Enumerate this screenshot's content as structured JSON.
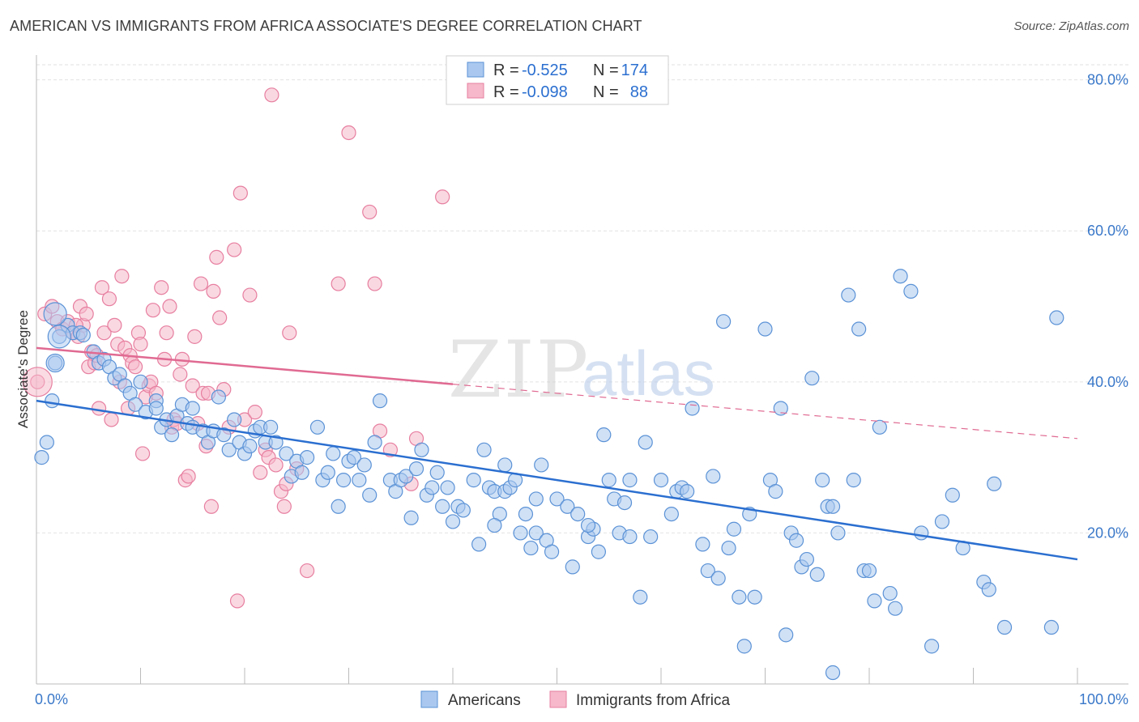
{
  "title": "AMERICAN VS IMMIGRANTS FROM AFRICA ASSOCIATE'S DEGREE CORRELATION CHART",
  "source": "Source: ZipAtlas.com",
  "watermark": {
    "zip": "ZIP",
    "atlas": "atlas"
  },
  "colors": {
    "blue_fill": "#aac8ef",
    "blue_stroke": "#5b92d6",
    "blue_line": "#2b6fd0",
    "pink_fill": "#f6b8ca",
    "pink_stroke": "#e77fa0",
    "pink_line": "#e06a92",
    "tick_text": "#3a78c9",
    "grid": "#e2e2e2"
  },
  "legend": {
    "r_label": "R =",
    "n_label": "N =",
    "rows": [
      {
        "series": "Americans",
        "r": "-0.525",
        "n": "174"
      },
      {
        "series": "Immigrants from Africa",
        "r": "-0.098",
        "n": "88"
      }
    ]
  },
  "chart_data": {
    "type": "scatter",
    "xlabel": "",
    "ylabel": "Associate's Degree",
    "xlim": [
      0,
      100
    ],
    "ylim": [
      0,
      82
    ],
    "x_tick_labels": [
      "0.0%",
      "100.0%"
    ],
    "y_ticks": [
      20,
      40,
      60,
      80
    ],
    "y_tick_labels": [
      "20.0%",
      "40.0%",
      "60.0%",
      "80.0%"
    ],
    "grid": true,
    "legend_position": "top-center",
    "bottom_legend": [
      "Americans",
      "Immigrants from Africa"
    ],
    "series": [
      {
        "name": "Americans",
        "color": "#5b92d6",
        "trend": {
          "x0": 0,
          "y0": 37.5,
          "x1": 100,
          "y1": 16.5,
          "solid_to": 100
        },
        "points": [
          [
            0.5,
            30
          ],
          [
            1,
            32
          ],
          [
            1.5,
            37.5
          ],
          [
            1.8,
            42.5
          ],
          [
            2.2,
            46
          ],
          [
            3,
            47.5
          ],
          [
            3.5,
            46.5
          ],
          [
            4.2,
            46.5
          ],
          [
            4.5,
            46.2
          ],
          [
            5.5,
            44
          ],
          [
            6,
            42.5
          ],
          [
            6.5,
            43
          ],
          [
            7,
            42
          ],
          [
            7.5,
            40.5
          ],
          [
            8,
            41
          ],
          [
            8.5,
            39.5
          ],
          [
            9,
            38.5
          ],
          [
            9.5,
            37
          ],
          [
            10,
            40
          ],
          [
            10.5,
            36
          ],
          [
            11.5,
            37.5
          ],
          [
            11.5,
            36.5
          ],
          [
            12,
            34
          ],
          [
            12.5,
            35
          ],
          [
            13,
            33
          ],
          [
            13.5,
            35.5
          ],
          [
            14,
            37
          ],
          [
            14.5,
            34.5
          ],
          [
            15,
            36.5
          ],
          [
            15,
            34
          ],
          [
            16,
            33.5
          ],
          [
            16.5,
            32
          ],
          [
            17,
            33.5
          ],
          [
            17.5,
            38
          ],
          [
            18,
            33
          ],
          [
            18.5,
            31
          ],
          [
            19,
            35
          ],
          [
            19.5,
            32
          ],
          [
            20,
            30.5
          ],
          [
            20.5,
            31.5
          ],
          [
            21,
            33.5
          ],
          [
            21.5,
            34
          ],
          [
            22,
            32
          ],
          [
            22.5,
            34
          ],
          [
            23,
            32
          ],
          [
            24,
            30.5
          ],
          [
            24.5,
            27.5
          ],
          [
            25,
            29.5
          ],
          [
            25.5,
            28
          ],
          [
            26,
            30
          ],
          [
            27,
            34
          ],
          [
            27.5,
            27
          ],
          [
            28,
            28
          ],
          [
            28.5,
            30.5
          ],
          [
            29,
            23.5
          ],
          [
            29.5,
            27
          ],
          [
            30,
            29.5
          ],
          [
            30.5,
            30
          ],
          [
            31,
            27
          ],
          [
            31.5,
            29
          ],
          [
            32,
            25
          ],
          [
            32.5,
            32
          ],
          [
            33,
            37.5
          ],
          [
            34,
            27
          ],
          [
            34.5,
            25.5
          ],
          [
            35,
            27
          ],
          [
            35.5,
            27.5
          ],
          [
            36,
            22
          ],
          [
            36.5,
            28.5
          ],
          [
            37,
            31
          ],
          [
            37.5,
            25
          ],
          [
            38,
            26
          ],
          [
            38.5,
            28
          ],
          [
            39,
            23.5
          ],
          [
            39.5,
            26
          ],
          [
            40,
            21.5
          ],
          [
            40.5,
            23.5
          ],
          [
            41,
            23
          ],
          [
            42,
            27
          ],
          [
            42.5,
            18.5
          ],
          [
            43,
            31
          ],
          [
            43.5,
            26
          ],
          [
            44,
            25.5
          ],
          [
            44.5,
            22.5
          ],
          [
            45,
            25.5
          ],
          [
            45.5,
            26
          ],
          [
            46,
            27
          ],
          [
            46.5,
            20
          ],
          [
            47,
            22.5
          ],
          [
            47.5,
            18
          ],
          [
            48,
            20
          ],
          [
            48.5,
            29
          ],
          [
            49,
            19
          ],
          [
            49.5,
            17.5
          ],
          [
            50,
            24.5
          ],
          [
            51,
            23.5
          ],
          [
            51.5,
            15.5
          ],
          [
            52,
            22.5
          ],
          [
            53,
            19.5
          ],
          [
            53.5,
            20.5
          ],
          [
            54,
            17.5
          ],
          [
            54.5,
            33
          ],
          [
            55,
            27
          ],
          [
            55.5,
            24.5
          ],
          [
            56,
            20
          ],
          [
            56.5,
            24
          ],
          [
            57,
            19.5
          ],
          [
            58,
            11.5
          ],
          [
            58.5,
            32
          ],
          [
            59,
            19.5
          ],
          [
            60,
            27
          ],
          [
            61,
            22.5
          ],
          [
            61.5,
            25.5
          ],
          [
            62,
            26
          ],
          [
            62.5,
            25.5
          ],
          [
            63,
            36.5
          ],
          [
            64,
            18.5
          ],
          [
            64.5,
            15
          ],
          [
            65,
            27.5
          ],
          [
            65.5,
            14
          ],
          [
            66,
            48
          ],
          [
            66.5,
            18
          ],
          [
            67,
            20.5
          ],
          [
            67.5,
            11.5
          ],
          [
            68,
            5
          ],
          [
            68.5,
            22.5
          ],
          [
            69,
            11.5
          ],
          [
            70,
            47
          ],
          [
            70.5,
            27
          ],
          [
            71,
            25.5
          ],
          [
            71.5,
            36.5
          ],
          [
            72,
            6.5
          ],
          [
            72.5,
            20
          ],
          [
            73,
            19
          ],
          [
            73.5,
            15.5
          ],
          [
            74,
            16.5
          ],
          [
            74.5,
            40.5
          ],
          [
            75,
            14.5
          ],
          [
            75.5,
            27
          ],
          [
            76,
            23.5
          ],
          [
            76.5,
            23.5
          ],
          [
            76.5,
            1.5
          ],
          [
            77,
            20
          ],
          [
            78,
            51.5
          ],
          [
            78.5,
            27
          ],
          [
            79,
            47
          ],
          [
            79.5,
            15
          ],
          [
            80,
            15
          ],
          [
            80.5,
            11
          ],
          [
            81,
            34
          ],
          [
            82,
            12
          ],
          [
            82.5,
            10
          ],
          [
            83,
            54
          ],
          [
            84,
            52
          ],
          [
            85,
            20
          ],
          [
            86,
            5
          ],
          [
            87,
            21.5
          ],
          [
            88,
            25
          ],
          [
            89,
            18
          ],
          [
            91,
            13.5
          ],
          [
            91.5,
            12.5
          ],
          [
            92,
            26.5
          ],
          [
            93,
            7.5
          ],
          [
            97.5,
            7.5
          ],
          [
            98,
            48.5
          ],
          [
            57,
            27
          ],
          [
            48,
            24.5
          ],
          [
            44,
            21
          ],
          [
            45,
            29
          ],
          [
            53,
            21
          ]
        ]
      },
      {
        "name": "Immigrants from Africa",
        "color": "#e77fa0",
        "trend": {
          "x0": 0,
          "y0": 44.5,
          "x1": 100,
          "y1": 32.5,
          "solid_to": 40
        },
        "points": [
          [
            0.1,
            40
          ],
          [
            0.8,
            49
          ],
          [
            1.5,
            50
          ],
          [
            2,
            48
          ],
          [
            2.5,
            47
          ],
          [
            3,
            48
          ],
          [
            3.5,
            46.5
          ],
          [
            4,
            46
          ],
          [
            4.2,
            50
          ],
          [
            4.5,
            47.5
          ],
          [
            5,
            42
          ],
          [
            5.3,
            44
          ],
          [
            5.6,
            42.5
          ],
          [
            5.8,
            43.5
          ],
          [
            6,
            36.5
          ],
          [
            6.3,
            52.5
          ],
          [
            6.5,
            46.5
          ],
          [
            7,
            51
          ],
          [
            7.2,
            35
          ],
          [
            7.5,
            47.5
          ],
          [
            7.8,
            45
          ],
          [
            8,
            40
          ],
          [
            8.2,
            54
          ],
          [
            8.5,
            44.5
          ],
          [
            8.8,
            36.5
          ],
          [
            9,
            43.5
          ],
          [
            9.2,
            42.5
          ],
          [
            9.5,
            42
          ],
          [
            9.8,
            46.5
          ],
          [
            10,
            45
          ],
          [
            10.2,
            30.5
          ],
          [
            10.5,
            38
          ],
          [
            10.8,
            39.5
          ],
          [
            11,
            40
          ],
          [
            11.2,
            49.5
          ],
          [
            11.5,
            38.5
          ],
          [
            12,
            52.5
          ],
          [
            12.3,
            43
          ],
          [
            12.5,
            46.5
          ],
          [
            12.8,
            50
          ],
          [
            13,
            34
          ],
          [
            13.2,
            35
          ],
          [
            13.5,
            34.5
          ],
          [
            13.8,
            41
          ],
          [
            14,
            43
          ],
          [
            14.3,
            27
          ],
          [
            14.6,
            27.5
          ],
          [
            15,
            39.5
          ],
          [
            15.2,
            46
          ],
          [
            15.5,
            34.5
          ],
          [
            15.8,
            53
          ],
          [
            16,
            38.5
          ],
          [
            16.3,
            31.5
          ],
          [
            16.5,
            38.5
          ],
          [
            16.8,
            23.5
          ],
          [
            17,
            52
          ],
          [
            17.3,
            56.5
          ],
          [
            17.6,
            48.5
          ],
          [
            18,
            39
          ],
          [
            18.5,
            34
          ],
          [
            19,
            57.5
          ],
          [
            19.3,
            11
          ],
          [
            19.6,
            65
          ],
          [
            20,
            35
          ],
          [
            20.5,
            51.5
          ],
          [
            21,
            36
          ],
          [
            21.5,
            28
          ],
          [
            22,
            31
          ],
          [
            22.3,
            30
          ],
          [
            22.6,
            78
          ],
          [
            23,
            29
          ],
          [
            23.5,
            25.5
          ],
          [
            23.8,
            23.5
          ],
          [
            24,
            26.5
          ],
          [
            24.3,
            46.5
          ],
          [
            25,
            28.5
          ],
          [
            26,
            15
          ],
          [
            29,
            53
          ],
          [
            30,
            73
          ],
          [
            32,
            62.5
          ],
          [
            32.5,
            53
          ],
          [
            33,
            33.5
          ],
          [
            34,
            31
          ],
          [
            36,
            26.5
          ],
          [
            36.5,
            32.5
          ],
          [
            39,
            64.5
          ],
          [
            3.8,
            47.5
          ],
          [
            4.8,
            49
          ]
        ]
      }
    ]
  }
}
